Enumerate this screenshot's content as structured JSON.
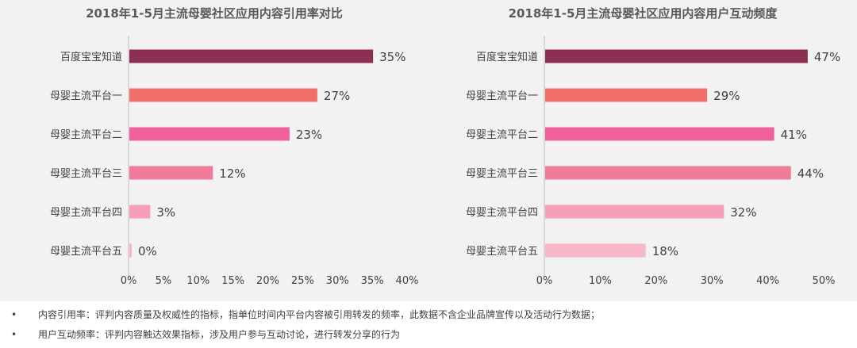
{
  "chart_data": [
    {
      "type": "bar",
      "orientation": "horizontal",
      "title": "2018年1-5月主流母婴社区应用内容引用率对比",
      "categories": [
        "百度宝宝知道",
        "母婴主流平台一",
        "母婴主流平台二",
        "母婴主流平台三",
        "母婴主流平台四",
        "母婴主流平台五"
      ],
      "values": [
        35,
        27,
        23,
        12,
        3,
        0
      ],
      "value_labels": [
        "35%",
        "27%",
        "23%",
        "12%",
        "3%",
        "0%"
      ],
      "bar_colors": [
        "#8c3053",
        "#f26e6a",
        "#f0609a",
        "#f07c9a",
        "#f5a0b4",
        "#f7b7c6"
      ],
      "xlim": [
        0,
        40
      ],
      "xticks": [
        "0%",
        "5%",
        "10%",
        "15%",
        "20%",
        "25%",
        "30%",
        "35%",
        "40%"
      ],
      "grid": false
    },
    {
      "type": "bar",
      "orientation": "horizontal",
      "title": "2018年1-5月主流母婴社区应用内容用户互动频度",
      "categories": [
        "百度宝宝知道",
        "母婴主流平台一",
        "母婴主流平台二",
        "母婴主流平台三",
        "母婴主流平台四",
        "母婴主流平台五"
      ],
      "values": [
        47,
        29,
        41,
        44,
        32,
        18
      ],
      "value_labels": [
        "47%",
        "29%",
        "41%",
        "44%",
        "32%",
        "18%"
      ],
      "bar_colors": [
        "#8c3053",
        "#f26e6a",
        "#f0609a",
        "#f07c9a",
        "#f5a0b4",
        "#f7b7c6"
      ],
      "xlim": [
        0,
        50
      ],
      "xticks": [
        "0%",
        "10%",
        "20%",
        "30%",
        "40%",
        "50%"
      ],
      "grid": false
    }
  ],
  "notes": [
    "内容引用率：评判内容质量及权威性的指标，指单位时间内平台内容被引用转发的频率，此数据不含企业品牌宣传以及活动行为数据；",
    "用户互动频率：评判内容触达效果指标，涉及用户参与互动讨论，进行转发分享的行为"
  ],
  "bullet": "•"
}
